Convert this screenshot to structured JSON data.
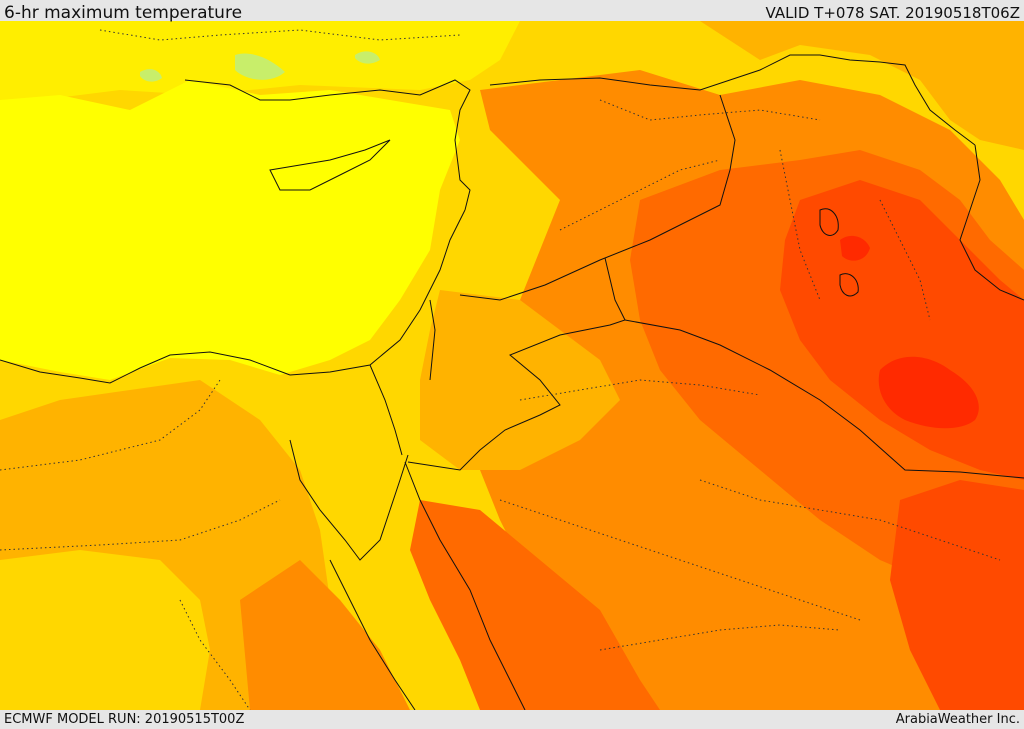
{
  "header": {
    "title": "6-hr maximum temperature",
    "valid": "VALID T+078 SAT. 20190518T06Z"
  },
  "footer": {
    "model_run": "ECMWF MODEL RUN: 20190515T00Z",
    "credit": "ArabiaWeather Inc."
  },
  "palette": {
    "lightgreen": "#c8ee6a",
    "yellow": "#ffff00",
    "lightgold": "#ffee00",
    "gold": "#ffd700",
    "amber": "#ffb300",
    "orange": "#ff8c00",
    "darkorange": "#ff6a00",
    "red_orange": "#ff4a00",
    "red": "#ff2a00",
    "border_color": "#111111"
  }
}
